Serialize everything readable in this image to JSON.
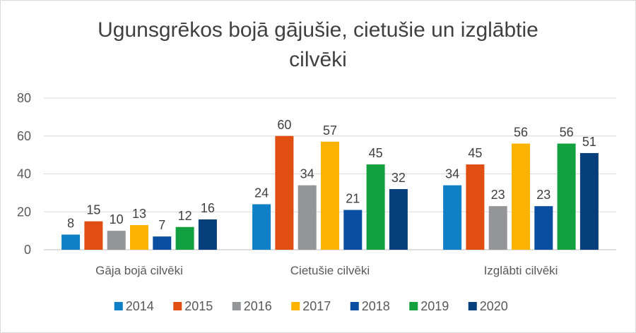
{
  "chart_data": {
    "type": "bar",
    "title_lines": [
      "Ugunsgrēkos bojā gājušie, cietušie un izglābtie",
      "cilvēki"
    ],
    "categories": [
      "Gāja bojā cilvēki",
      "Cietušie cilvēki",
      "Izglābti cilvēki"
    ],
    "series": [
      {
        "name": "2014",
        "color": "#0f7fc6",
        "values": [
          8,
          24,
          34
        ]
      },
      {
        "name": "2015",
        "color": "#e04e12",
        "values": [
          15,
          60,
          45
        ]
      },
      {
        "name": "2016",
        "color": "#939598",
        "values": [
          10,
          34,
          23
        ]
      },
      {
        "name": "2017",
        "color": "#fbb300",
        "values": [
          13,
          57,
          56
        ]
      },
      {
        "name": "2018",
        "color": "#0a4ea2",
        "values": [
          7,
          21,
          23
        ]
      },
      {
        "name": "2019",
        "color": "#13a03f",
        "values": [
          12,
          45,
          56
        ]
      },
      {
        "name": "2020",
        "color": "#073f7c",
        "values": [
          16,
          32,
          51
        ]
      }
    ],
    "ylim": [
      0,
      80
    ],
    "yticks": [
      0,
      20,
      40,
      60,
      80
    ],
    "grid": true,
    "legend": "bottom"
  }
}
